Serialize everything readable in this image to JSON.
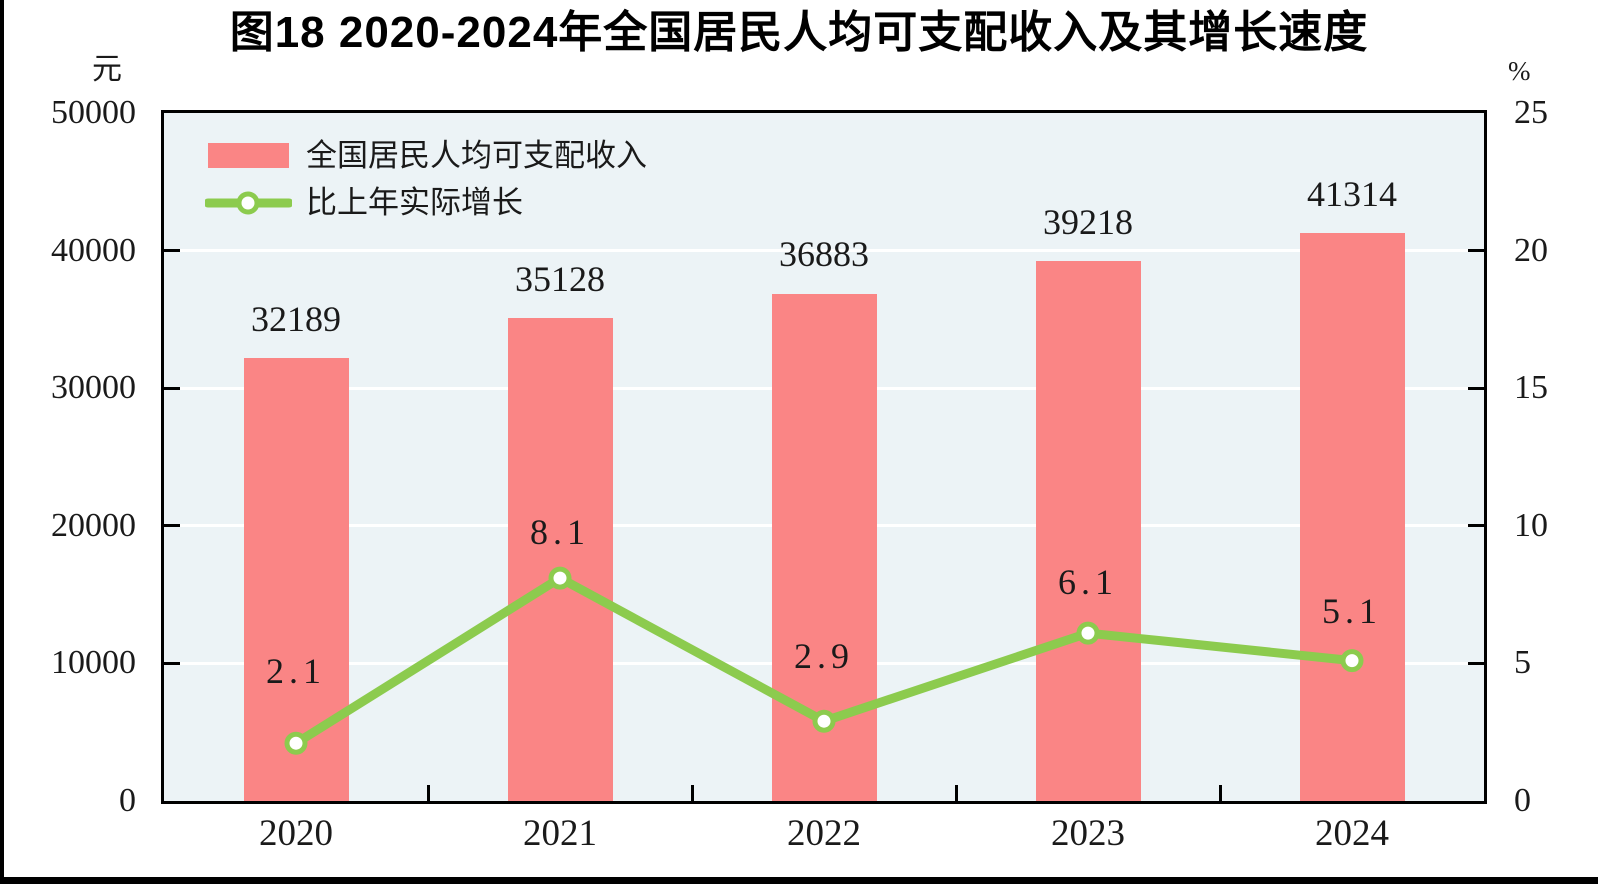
{
  "page": {
    "title": "图18  2020-2024年全国居民人均可支配收入及其增长速度"
  },
  "chart_data": {
    "type": "bar",
    "combo": "bar+line",
    "title": "图18 2020-2024年全国居民人均可支配收入及其增长速度",
    "categories": [
      "2020",
      "2021",
      "2022",
      "2023",
      "2024"
    ],
    "series": [
      {
        "name": "全国居民人均可支配收入",
        "type": "bar",
        "axis": "left",
        "color": "#FA8585",
        "values": [
          32189,
          35128,
          36883,
          39218,
          41314
        ],
        "labels": [
          "32189",
          "35128",
          "36883",
          "39218",
          "41314"
        ]
      },
      {
        "name": "比上年实际增长",
        "type": "line",
        "axis": "right",
        "color": "#8CCB4E",
        "marker": "circle-white-fill",
        "values": [
          2.1,
          8.1,
          2.9,
          6.1,
          5.1
        ],
        "labels": [
          "2.1",
          "8.1",
          "2.9",
          "6.1",
          "5.1"
        ]
      }
    ],
    "left_axis": {
      "unit": "元",
      "min": 0,
      "max": 50000,
      "tick_step": 10000,
      "tick_labels": [
        "50000",
        "40000",
        "30000",
        "20000",
        "10000",
        "0"
      ]
    },
    "right_axis": {
      "unit": "%",
      "min": 0,
      "max": 25,
      "tick_step": 5,
      "tick_labels": [
        "25",
        "20",
        "15",
        "10",
        "5",
        "0"
      ]
    },
    "grid": {
      "horizontal": true,
      "color": "#FFFFFF"
    },
    "legend": {
      "position": "top-left-inside",
      "entries": [
        "全国居民人均可支配收入",
        "比上年实际增长"
      ]
    },
    "plot_background": "#ECF3F6"
  },
  "colors": {
    "bar": "#FA8585",
    "line": "#8CCB4E",
    "plot_bg": "#ECF3F6",
    "grid": "#FFFFFF",
    "border": "#000000",
    "text": "#1A1A1A"
  }
}
